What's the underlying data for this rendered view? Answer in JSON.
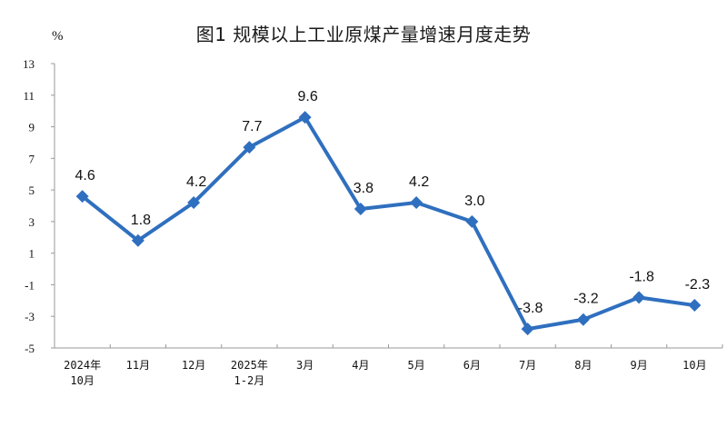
{
  "chart_data": {
    "type": "line",
    "title": "图1  规模以上工业原煤产量增速月度走势",
    "xlabel": "",
    "ylabel": "%",
    "ylim": [
      -5,
      13
    ],
    "yticks": [
      13,
      11,
      9,
      7,
      5,
      3,
      1,
      -1,
      -3,
      -5
    ],
    "grid": false,
    "legend": null,
    "categories": [
      [
        "2024年",
        "10月"
      ],
      [
        "11月"
      ],
      [
        "12月"
      ],
      [
        "2025年",
        "1-2月"
      ],
      [
        "3月"
      ],
      [
        "4月"
      ],
      [
        "5月"
      ],
      [
        "6月"
      ],
      [
        "7月"
      ],
      [
        "8月"
      ],
      [
        "9月"
      ],
      [
        "10月"
      ]
    ],
    "series": [
      {
        "name": "规模以上工业原煤产量增速",
        "color": "#2f6fbf",
        "marker": "diamond",
        "values": [
          4.6,
          1.8,
          4.2,
          7.7,
          9.6,
          3.8,
          4.2,
          3.0,
          -3.8,
          -3.2,
          -1.8,
          -2.3
        ],
        "labels": [
          "4.6",
          "1.8",
          "4.2",
          "7.7",
          "9.6",
          "3.8",
          "4.2",
          "3.0",
          "-3.8",
          "-3.2",
          "-1.8",
          "-2.3"
        ]
      }
    ]
  }
}
